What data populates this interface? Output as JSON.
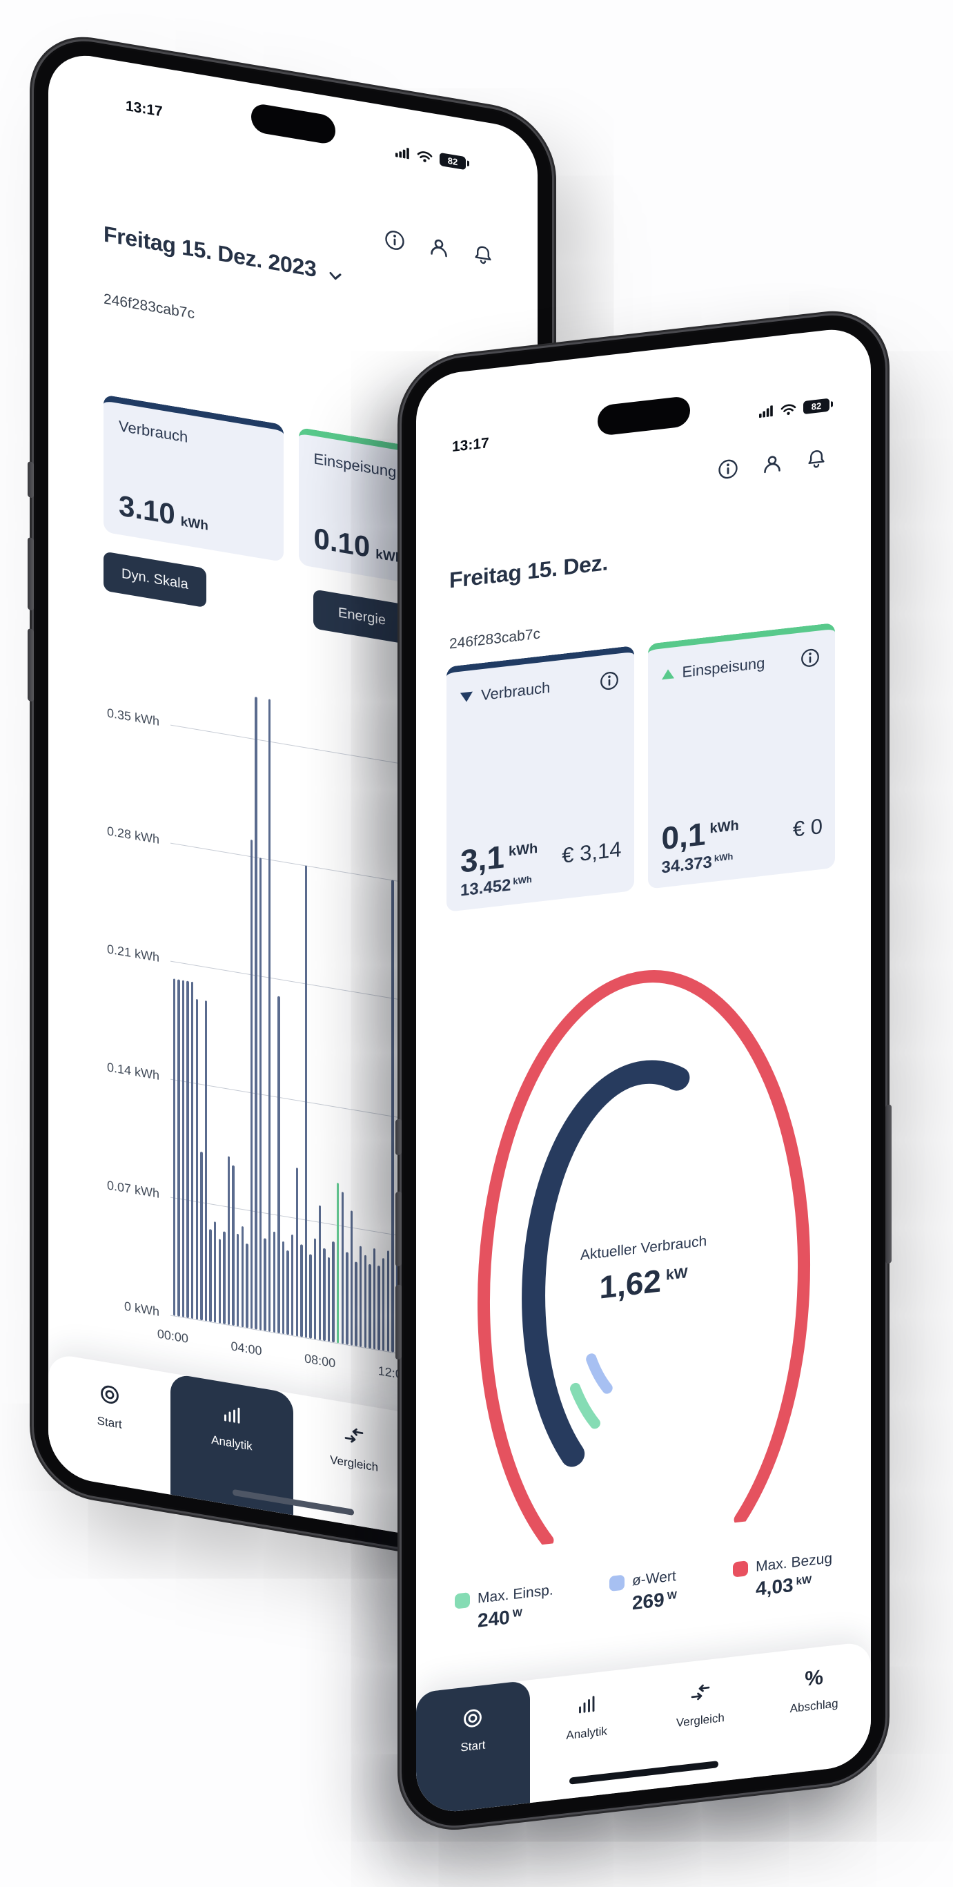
{
  "left_phone": {
    "status": {
      "time": "13:17",
      "battery_level": "82"
    },
    "header": {
      "title": "Freitag 15. Dez. 2023",
      "device_id": "246f283cab7c"
    },
    "cards": [
      {
        "label": "Verbrauch",
        "value": "3.10",
        "unit": "kWh",
        "accent": "#203b63"
      },
      {
        "label": "Einspeisung",
        "value": "0.10",
        "unit": "kWh",
        "accent": "#58c98b"
      }
    ],
    "actions": {
      "scale_button": "Dyn. Skala",
      "energy_button": "Energie"
    },
    "nav": {
      "active": "Analytik",
      "items": [
        {
          "label": "Start",
          "icon": "target"
        },
        {
          "label": "Analytik",
          "icon": "bars"
        },
        {
          "label": "Vergleich",
          "icon": "compare-arrows"
        },
        {
          "label": "Abschlag",
          "icon": "percent",
          "icon_glyph": "%"
        }
      ]
    }
  },
  "right_phone": {
    "status": {
      "time": "13:17",
      "battery_level": "82"
    },
    "header": {
      "title": "Freitag 15. Dez.",
      "device_id": "246f283cab7c"
    },
    "cards": [
      {
        "label": "Verbrauch",
        "direction": "down",
        "value": "3,1",
        "unit": "kWh",
        "total": "13.452",
        "total_unit": "kWh",
        "cost": "€ 3,14",
        "accent": "#203b63"
      },
      {
        "label": "Einspeisung",
        "direction": "up",
        "value": "0,1",
        "unit": "kWh",
        "total": "34.373",
        "total_unit": "kWh",
        "cost": "€ 0",
        "accent": "#58c98b"
      }
    ],
    "legend": [
      {
        "label": "Max. Einsp.",
        "value": "240",
        "unit": "W",
        "color": "#85dcb4"
      },
      {
        "label": "ø-Wert",
        "value": "269",
        "unit": "W",
        "color": "#a7c0f2"
      },
      {
        "label": "Max. Bezug",
        "value": "4,03",
        "unit": "kW",
        "color": "#e8505f"
      }
    ],
    "nav": {
      "active": "Start",
      "items": [
        {
          "label": "Start",
          "icon": "target"
        },
        {
          "label": "Analytik",
          "icon": "bars"
        },
        {
          "label": "Vergleich",
          "icon": "compare-arrows"
        },
        {
          "label": "Abschlag",
          "icon": "percent",
          "icon_glyph": "%"
        }
      ]
    }
  },
  "chart_data": [
    {
      "type": "bar",
      "unit": "kWh",
      "interval_minutes": 15,
      "start": "00:00",
      "ylim": [
        0,
        0.385
      ],
      "bar_color": "#5a6b8e",
      "highlight_color": "#64ca93",
      "highlight_index": 36,
      "grid": true,
      "y_ticks": [
        {
          "label": "0.35 kWh",
          "value": 0.35
        },
        {
          "label": "0.28 kWh",
          "value": 0.28
        },
        {
          "label": "0.21 kWh",
          "value": 0.21
        },
        {
          "label": "0.14 kWh",
          "value": 0.14
        },
        {
          "label": "0.07 kWh",
          "value": 0.07
        },
        {
          "label": "0 kWh",
          "value": 0
        }
      ],
      "x_ticks": [
        {
          "label": "00:00",
          "slot": 0
        },
        {
          "label": "04:00",
          "slot": 16
        },
        {
          "label": "08:00",
          "slot": 32
        },
        {
          "label": "12:00",
          "slot": 48
        }
      ],
      "values": [
        0.2,
        0.2,
        0.2,
        0.2,
        0.2,
        0.19,
        0.1,
        0.19,
        0.055,
        0.06,
        0.05,
        0.055,
        0.1,
        0.095,
        0.055,
        0.06,
        0.05,
        0.29,
        0.375,
        0.28,
        0.055,
        0.375,
        0.06,
        0.2,
        0.055,
        0.05,
        0.06,
        0.1,
        0.055,
        0.28,
        0.05,
        0.06,
        0.08,
        0.055,
        0.05,
        0.06,
        0.095,
        0.09,
        0.055,
        0.08,
        0.05,
        0.06,
        0.055,
        0.05,
        0.06,
        0.05,
        0.055,
        0.06,
        0.28,
        0.08,
        0.055,
        0.08,
        0.05,
        0.055
      ]
    },
    {
      "type": "gauge",
      "title": "Aktueller Verbrauch",
      "value": "1,62",
      "unit": "kW",
      "current_kw": 1.62,
      "max_bezug_kw": 4.03,
      "max_einspeisung_w": 240,
      "avg_w": 269,
      "arcs": [
        {
          "name": "max-bezug",
          "r": 232,
          "w": 18,
          "a0": -143,
          "a1": 143,
          "color": "#e5525f"
        },
        {
          "name": "current",
          "r": 160,
          "w": 34,
          "a0": -140,
          "a1": 18,
          "color": "#273b5e"
        },
        {
          "name": "max-einspeisung",
          "r": 123,
          "w": 15,
          "a0": -145,
          "a1": -126,
          "color": "#85dcb4"
        },
        {
          "name": "avg",
          "r": 92,
          "w": 15,
          "a0": -145,
          "a1": -124,
          "color": "#a7c0f2"
        }
      ]
    }
  ]
}
